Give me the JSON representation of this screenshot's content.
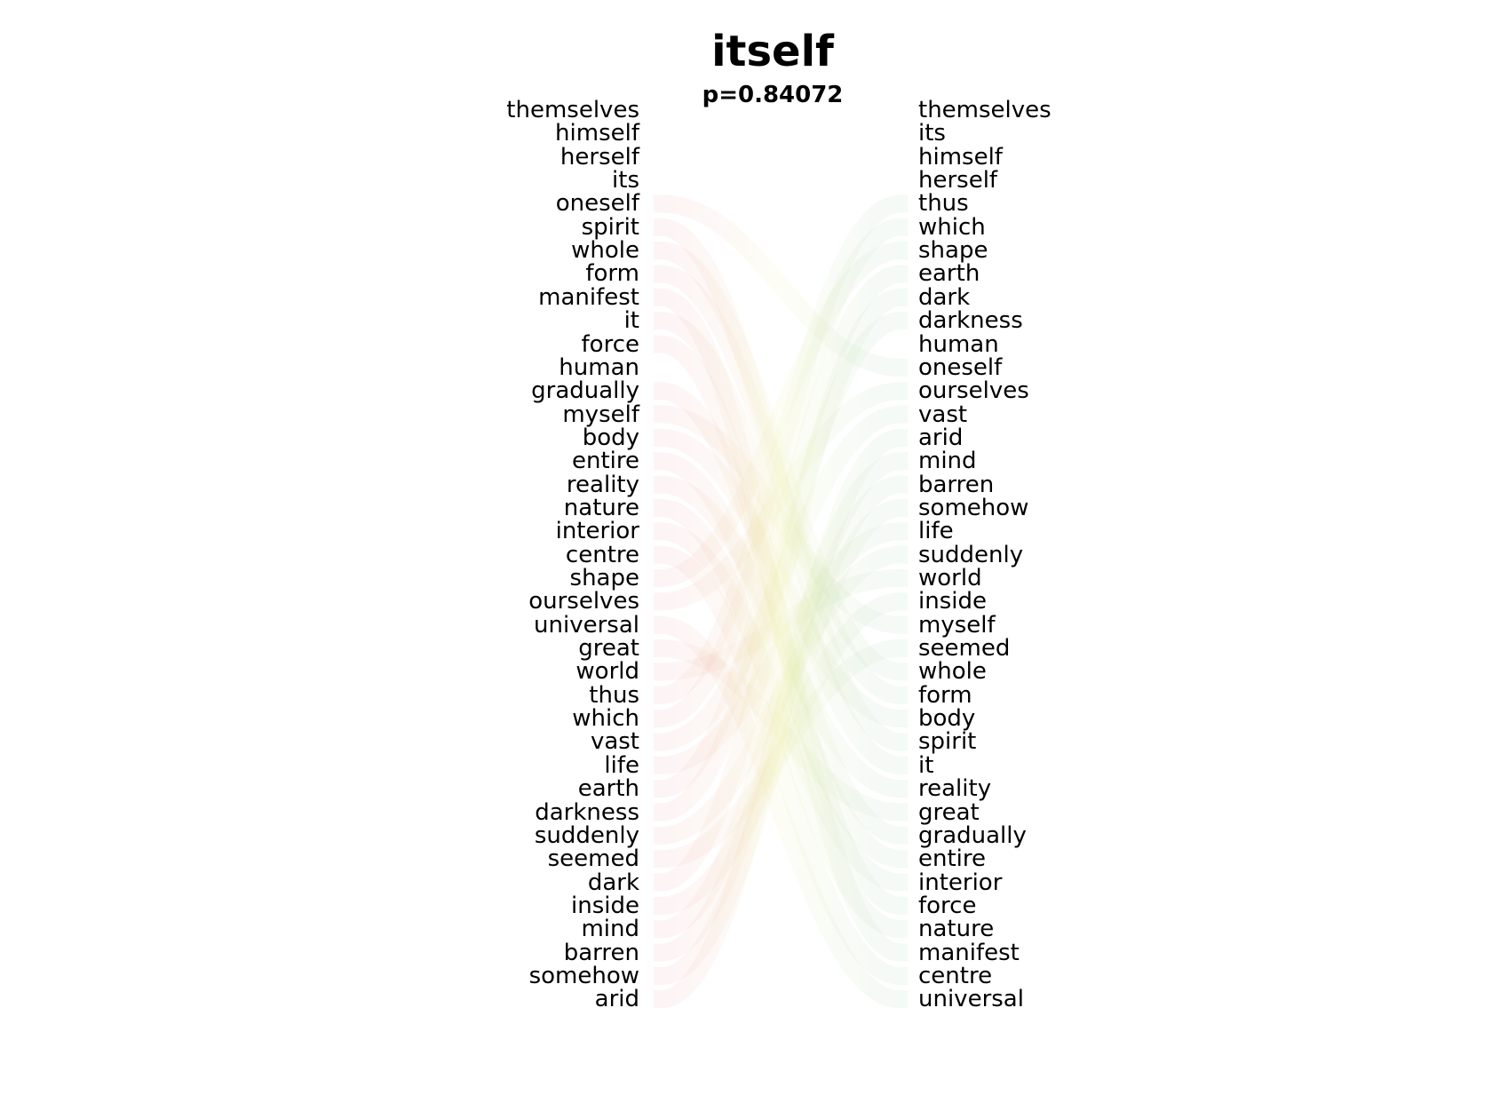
{
  "title": "itself",
  "subtitle": "p=0.84072",
  "colors": {
    "left_ribbon": "#e8707a",
    "right_ribbon": "#70b890",
    "mid_ribbon": "#e6e890"
  },
  "left_words": [
    "themselves",
    "himself",
    "herself",
    "its",
    "oneself",
    "spirit",
    "whole",
    "form",
    "manifest",
    "it",
    "force",
    "human",
    "gradually",
    "myself",
    "body",
    "entire",
    "reality",
    "nature",
    "interior",
    "centre",
    "shape",
    "ourselves",
    "universal",
    "great",
    "world",
    "thus",
    "which",
    "vast",
    "life",
    "earth",
    "darkness",
    "suddenly",
    "seemed",
    "dark",
    "inside",
    "mind",
    "barren",
    "somehow",
    "arid"
  ],
  "right_words": [
    "themselves",
    "its",
    "himself",
    "herself",
    "thus",
    "which",
    "shape",
    "earth",
    "dark",
    "darkness",
    "human",
    "oneself",
    "ourselves",
    "vast",
    "arid",
    "mind",
    "barren",
    "somehow",
    "life",
    "suddenly",
    "world",
    "inside",
    "myself",
    "seemed",
    "whole",
    "form",
    "body",
    "spirit",
    "it",
    "reality",
    "great",
    "gradually",
    "entire",
    "interior",
    "force",
    "nature",
    "manifest",
    "centre",
    "universal"
  ]
}
